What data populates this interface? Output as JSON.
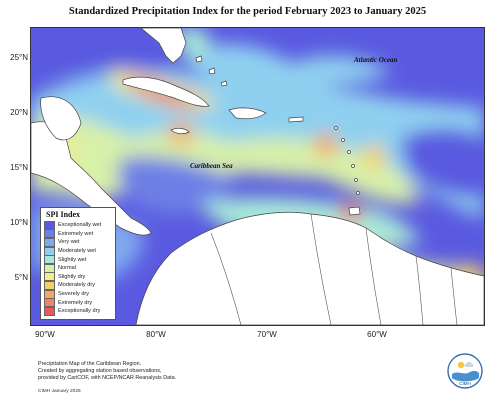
{
  "title": "Standardized Precipitation Index for the period February 2023 to January 2025",
  "axes": {
    "y_ticks": [
      "25°N",
      "20°N",
      "15°N",
      "10°N",
      "5°N"
    ],
    "x_ticks": [
      "90°W",
      "80°W",
      "70°W",
      "60°W"
    ]
  },
  "map_labels": {
    "atlantic": "Atlantic Ocean",
    "caribbean": "Caribbean Sea"
  },
  "legend": {
    "title": "SPI Index",
    "items": [
      {
        "label": "Exceptionally wet",
        "color": "#5a5ae0"
      },
      {
        "label": "Extremely wet",
        "color": "#6d7fe6"
      },
      {
        "label": "Very wet",
        "color": "#7fa8ee"
      },
      {
        "label": "Moderately wet",
        "color": "#8fd0f0"
      },
      {
        "label": "Slightly wet",
        "color": "#a8e8d8"
      },
      {
        "label": "Normal",
        "color": "#d8f0a8"
      },
      {
        "label": "Slightly dry",
        "color": "#f4ee88"
      },
      {
        "label": "Moderately dry",
        "color": "#f7cf6a"
      },
      {
        "label": "Severely dry",
        "color": "#f4a860"
      },
      {
        "label": "Extremely dry",
        "color": "#ee8466"
      },
      {
        "label": "Exceptionally dry",
        "color": "#e85a5a"
      }
    ]
  },
  "footnote": {
    "line1": "Precipitation Map of the Caribbean Region.",
    "line2": "Created by aggregating station based observations,",
    "line3": "provided by CariCOF, with NCEP/NCAR Reanalysis Data.",
    "credit": "CIMH January 2025"
  },
  "logo": {
    "text": "CIMH"
  }
}
